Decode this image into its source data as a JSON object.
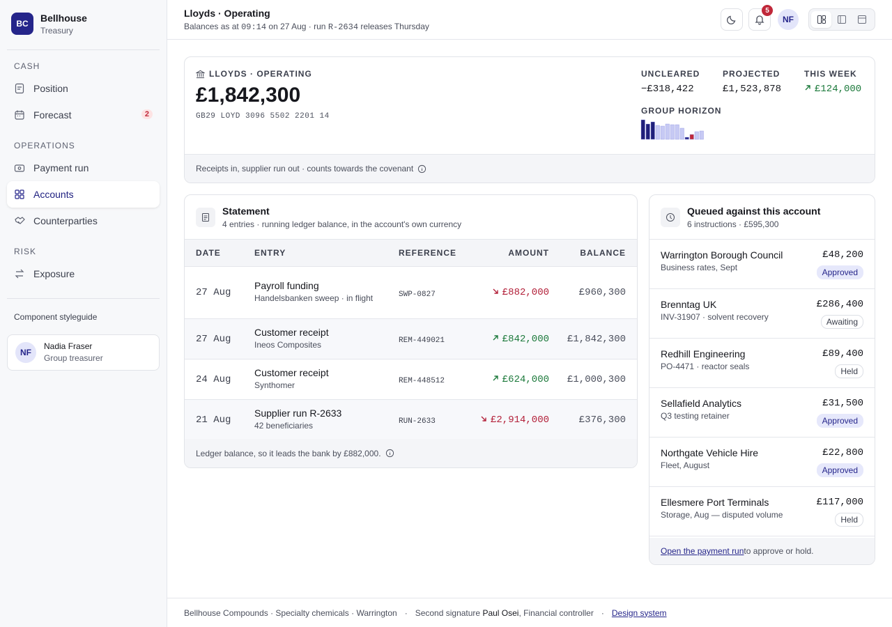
{
  "sidebar": {
    "logo": "BC",
    "org": "Bellhouse",
    "org_sub": "Treasury",
    "sections": [
      {
        "title": "CASH",
        "items": [
          {
            "label": "Position",
            "icon": "doc"
          },
          {
            "label": "Forecast",
            "icon": "cal",
            "badge": 2
          }
        ]
      },
      {
        "title": "OPERATIONS",
        "items": [
          {
            "label": "Payment run",
            "icon": "cash"
          },
          {
            "label": "Accounts",
            "icon": "grid",
            "active": true
          },
          {
            "label": "Counterparties",
            "icon": "shake"
          }
        ]
      },
      {
        "title": "RISK",
        "items": [
          {
            "label": "Exposure",
            "icon": "swap"
          }
        ]
      }
    ],
    "styleguide": "Component styleguide",
    "user": {
      "initials": "NF",
      "name": "Nadia Fraser",
      "role": "Group treasurer"
    }
  },
  "header": {
    "title": "Lloyds · Operating",
    "subtitle": [
      {
        "text": "Balances as at "
      },
      {
        "text": "09:14",
        "mono": true
      },
      {
        "text": " on 27 Aug · run "
      },
      {
        "text": "R-2634",
        "mono": true
      },
      {
        "text": " releases Thursday"
      }
    ],
    "notifications": 5,
    "avatar": "NF"
  },
  "account": {
    "label": "LLOYDS · OPERATING",
    "balance": "£1,842,300",
    "iban": "GB29 LOYD 3096 5502 2201 14",
    "stats": [
      {
        "label": "UNCLEARED",
        "value": "−£318,422"
      },
      {
        "label": "PROJECTED",
        "value": "£1,523,878"
      },
      {
        "label": "THIS WEEK",
        "value": "£124,000",
        "trend": "up"
      }
    ],
    "horizon": {
      "label": "GROUP HORIZON",
      "values": [
        28,
        22,
        25,
        20,
        19,
        22,
        21,
        21,
        16,
        3,
        7,
        11,
        12
      ],
      "colors": [
        "#1f1f7a",
        "#1f1f7a",
        "#1f1f7a",
        "#c7caf4",
        "#c7caf4",
        "#c7caf4",
        "#c7caf4",
        "#c7caf4",
        "#c7caf4",
        "#2a2a8a",
        "#c0283a",
        "#c7caf4",
        "#c7caf4"
      ]
    },
    "note": "Receipts in, supplier run out · counts towards the covenant"
  },
  "statement": {
    "title": "Statement",
    "subtitle": "4 entries · running ledger balance, in the account's own currency",
    "columns": [
      "DATE",
      "ENTRY",
      "REFERENCE",
      "AMOUNT",
      "BALANCE"
    ],
    "rows": [
      {
        "date": "27 Aug",
        "entry": "Payroll funding",
        "detail": "Handelsbanken sweep · in flight",
        "ref": "SWP-0827",
        "amount": "£882,000",
        "direction": "out",
        "balance": "£960,300"
      },
      {
        "date": "27 Aug",
        "entry": "Customer receipt",
        "detail": "Ineos Composites",
        "ref": "REM-449021",
        "amount": "£842,000",
        "direction": "in",
        "balance": "£1,842,300"
      },
      {
        "date": "24 Aug",
        "entry": "Customer receipt",
        "detail": "Synthomer",
        "ref": "REM-448512",
        "amount": "£624,000",
        "direction": "in",
        "balance": "£1,000,300"
      },
      {
        "date": "21 Aug",
        "entry": "Supplier run R-2633",
        "detail": "42 beneficiaries",
        "ref": "RUN-2633",
        "amount": "£2,914,000",
        "direction": "out",
        "balance": "£376,300"
      }
    ],
    "footer": "Ledger balance, so it leads the bank by £882,000."
  },
  "queue": {
    "title": "Queued against this account",
    "subtitle": "6 instructions · £595,300",
    "items": [
      {
        "name": "Warrington Borough Council",
        "detail": "Business rates, Sept",
        "amount": "£48,200",
        "status": "Approved"
      },
      {
        "name": "Brenntag UK",
        "detail": "INV-31907 · solvent recovery",
        "amount": "£286,400",
        "status": "Awaiting"
      },
      {
        "name": "Redhill Engineering",
        "detail": "PO-4471 · reactor seals",
        "amount": "£89,400",
        "status": "Held"
      },
      {
        "name": "Sellafield Analytics",
        "detail": "Q3 testing retainer",
        "amount": "£31,500",
        "status": "Approved"
      },
      {
        "name": "Northgate Vehicle Hire",
        "detail": "Fleet, August",
        "amount": "£22,800",
        "status": "Approved"
      },
      {
        "name": "Ellesmere Port Terminals",
        "detail": "Storage, Aug — disputed volume",
        "amount": "£117,000",
        "status": "Held"
      }
    ],
    "footer_link": "Open the payment run",
    "footer_rest": " to approve or hold."
  },
  "footer": {
    "company": "Bellhouse Compounds · Specialty chemicals · Warrington",
    "sep": "·",
    "sig_prefix": "Second signature ",
    "sig_name": "Paul Osei",
    "sig_role": ", Financial controller",
    "link": "Design system"
  }
}
